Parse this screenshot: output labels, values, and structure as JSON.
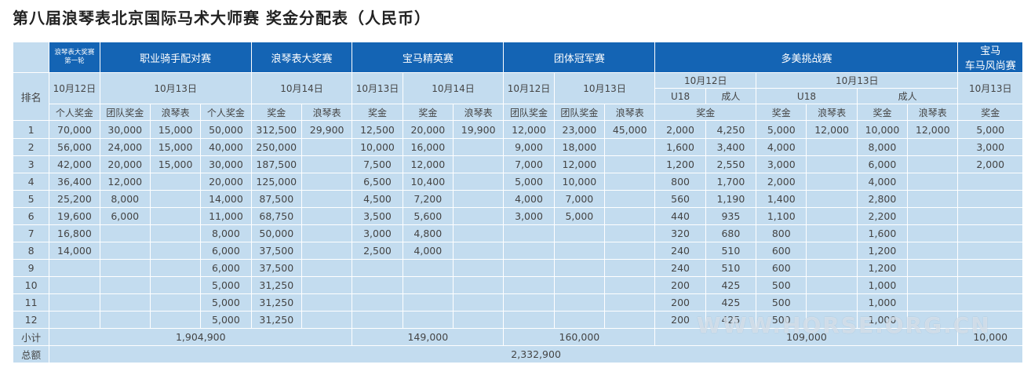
{
  "title": "第八届浪琴表北京国际马术大师赛 奖金分配表（人民币）",
  "watermark": "WWW.HORSE.ORG.CN",
  "colors": {
    "header_blue": "#1464b4",
    "cell_blue": "#c3dcef",
    "text": "#444444"
  },
  "events": {
    "e1_line1": "浪琴表大奖赛",
    "e1_line2": "第一轮",
    "e2": "职业骑手配对赛",
    "e3": "浪琴表大奖赛",
    "e4": "宝马精英赛",
    "e5": "团体冠军赛",
    "e6": "多美挑战赛",
    "e7_line1": "宝马",
    "e7_line2": "车马风尚赛"
  },
  "rank_label": "排名",
  "dates": {
    "d1": "10月12日",
    "d2": "10月13日",
    "d3": "10月14日",
    "d4a": "10月13日",
    "d4b": "10月14日",
    "d5a": "10月12日",
    "d5b": "10月13日",
    "d6a": "10月12日",
    "d6b": "10月13日",
    "d7": "10月13日"
  },
  "categories": {
    "u18_a": "U18",
    "adult_a": "成人",
    "u18_b": "U18",
    "adult_b": "成人"
  },
  "subheaders": [
    "个人奖金",
    "团队奖金",
    "浪琴表",
    "个人奖金",
    "奖金",
    "浪琴表",
    "奖金",
    "奖金",
    "浪琴表",
    "团队奖金",
    "团队奖金",
    "浪琴表",
    "奖金",
    "奖金",
    "浪琴表",
    "奖金",
    "浪琴表",
    "奖金"
  ],
  "rows": [
    [
      "1",
      "70,000",
      "30,000",
      "15,000",
      "50,000",
      "312,500",
      "29,900",
      "12,500",
      "20,000",
      "19,900",
      "12,000",
      "23,000",
      "45,000",
      "2,000",
      "4,250",
      "5,000",
      "12,000",
      "10,000",
      "12,000",
      "5,000"
    ],
    [
      "2",
      "56,000",
      "24,000",
      "15,000",
      "40,000",
      "250,000",
      "",
      "10,000",
      "16,000",
      "",
      "9,000",
      "18,000",
      "",
      "1,600",
      "3,400",
      "4,000",
      "",
      "8,000",
      "",
      "3,000"
    ],
    [
      "3",
      "42,000",
      "20,000",
      "15,000",
      "30,000",
      "187,500",
      "",
      "7,500",
      "12,000",
      "",
      "7,000",
      "12,000",
      "",
      "1,200",
      "2,550",
      "3,000",
      "",
      "6,000",
      "",
      "2,000"
    ],
    [
      "4",
      "36,400",
      "12,000",
      "",
      "20,000",
      "125,000",
      "",
      "6,500",
      "10,400",
      "",
      "5,000",
      "10,000",
      "",
      "800",
      "1,700",
      "2,000",
      "",
      "4,000",
      "",
      ""
    ],
    [
      "5",
      "25,200",
      "8,000",
      "",
      "14,000",
      "87,500",
      "",
      "4,500",
      "7,200",
      "",
      "4,000",
      "7,000",
      "",
      "560",
      "1,190",
      "1,400",
      "",
      "2,800",
      "",
      ""
    ],
    [
      "6",
      "19,600",
      "6,000",
      "",
      "11,000",
      "68,750",
      "",
      "3,500",
      "5,600",
      "",
      "3,000",
      "5,000",
      "",
      "440",
      "935",
      "1,100",
      "",
      "2,200",
      "",
      ""
    ],
    [
      "7",
      "16,800",
      "",
      "",
      "8,000",
      "50,000",
      "",
      "3,000",
      "4,800",
      "",
      "",
      "",
      "",
      "320",
      "680",
      "800",
      "",
      "1,600",
      "",
      ""
    ],
    [
      "8",
      "14,000",
      "",
      "",
      "6,000",
      "37,500",
      "",
      "2,500",
      "4,000",
      "",
      "",
      "",
      "",
      "240",
      "510",
      "600",
      "",
      "1,200",
      "",
      ""
    ],
    [
      "9",
      "",
      "",
      "",
      "6,000",
      "37,500",
      "",
      "",
      "",
      "",
      "",
      "",
      "",
      "240",
      "510",
      "600",
      "",
      "1,200",
      "",
      ""
    ],
    [
      "10",
      "",
      "",
      "",
      "5,000",
      "31,250",
      "",
      "",
      "",
      "",
      "",
      "",
      "",
      "200",
      "425",
      "500",
      "",
      "1,000",
      "",
      ""
    ],
    [
      "11",
      "",
      "",
      "",
      "5,000",
      "31,250",
      "",
      "",
      "",
      "",
      "",
      "",
      "",
      "200",
      "425",
      "500",
      "",
      "1,000",
      "",
      ""
    ],
    [
      "12",
      "",
      "",
      "",
      "5,000",
      "31,250",
      "",
      "",
      "",
      "",
      "",
      "",
      "",
      "200",
      "425",
      "500",
      "",
      "1,000",
      "",
      ""
    ]
  ],
  "subtotal": {
    "label": "小计",
    "s1": "1,904,900",
    "s2": "149,000",
    "s3": "160,000",
    "s4": "109,000",
    "s5": "10,000"
  },
  "total": {
    "label": "总额",
    "value": "2,332,900"
  }
}
